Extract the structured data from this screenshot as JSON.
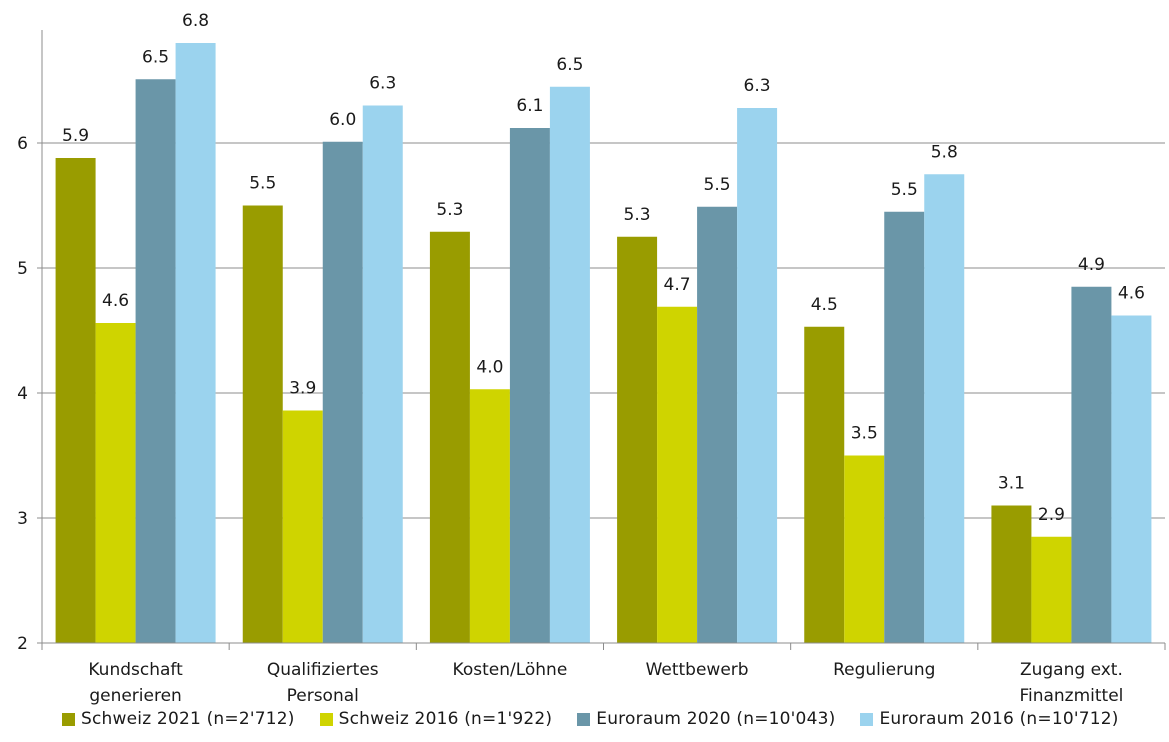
{
  "chart_data": {
    "type": "bar",
    "title": "",
    "xlabel": "",
    "ylabel": "",
    "ylim": [
      2,
      7
    ],
    "yticks": [
      "2",
      "3",
      "4",
      "5",
      "6"
    ],
    "grid": "horizontal",
    "legend_placement": "bottom",
    "categories": [
      [
        "Kundschaft",
        "generieren"
      ],
      [
        "Qualifiziertes",
        "Personal"
      ],
      [
        "Kosten/Löhne"
      ],
      [
        "Wettbewerb"
      ],
      [
        "Regulierung"
      ],
      [
        "Zugang ext.",
        "Finanzmittel"
      ]
    ],
    "series": [
      {
        "name": "Schweiz 2021 (n=2'712)",
        "color": "#999c00",
        "values": [
          5.88,
          5.5,
          5.29,
          5.25,
          4.53,
          3.1
        ],
        "labels": [
          "5.9",
          "5.5",
          "5.3",
          "5.3",
          "4.5",
          "3.1"
        ]
      },
      {
        "name": "Schweiz 2016 (n=1'922)",
        "color": "#cfd400",
        "values": [
          4.56,
          3.86,
          4.03,
          4.69,
          3.5,
          2.85
        ],
        "labels": [
          "4.6",
          "3.9",
          "4.0",
          "4.7",
          "3.5",
          "2.9"
        ]
      },
      {
        "name": "Euroraum 2020 (n=10'043)",
        "color": "#6a96a8",
        "values": [
          6.51,
          6.01,
          6.12,
          5.49,
          5.45,
          4.85
        ],
        "labels": [
          "6.5",
          "6.0",
          "6.1",
          "5.5",
          "5.5",
          "4.9"
        ]
      },
      {
        "name": "Euroraum 2016 (n=10'712)",
        "color": "#9bd3ee",
        "values": [
          6.8,
          6.3,
          6.45,
          6.28,
          5.75,
          4.62
        ],
        "labels": [
          "6.8",
          "6.3",
          "6.5",
          "6.3",
          "5.8",
          "4.6"
        ]
      }
    ]
  }
}
